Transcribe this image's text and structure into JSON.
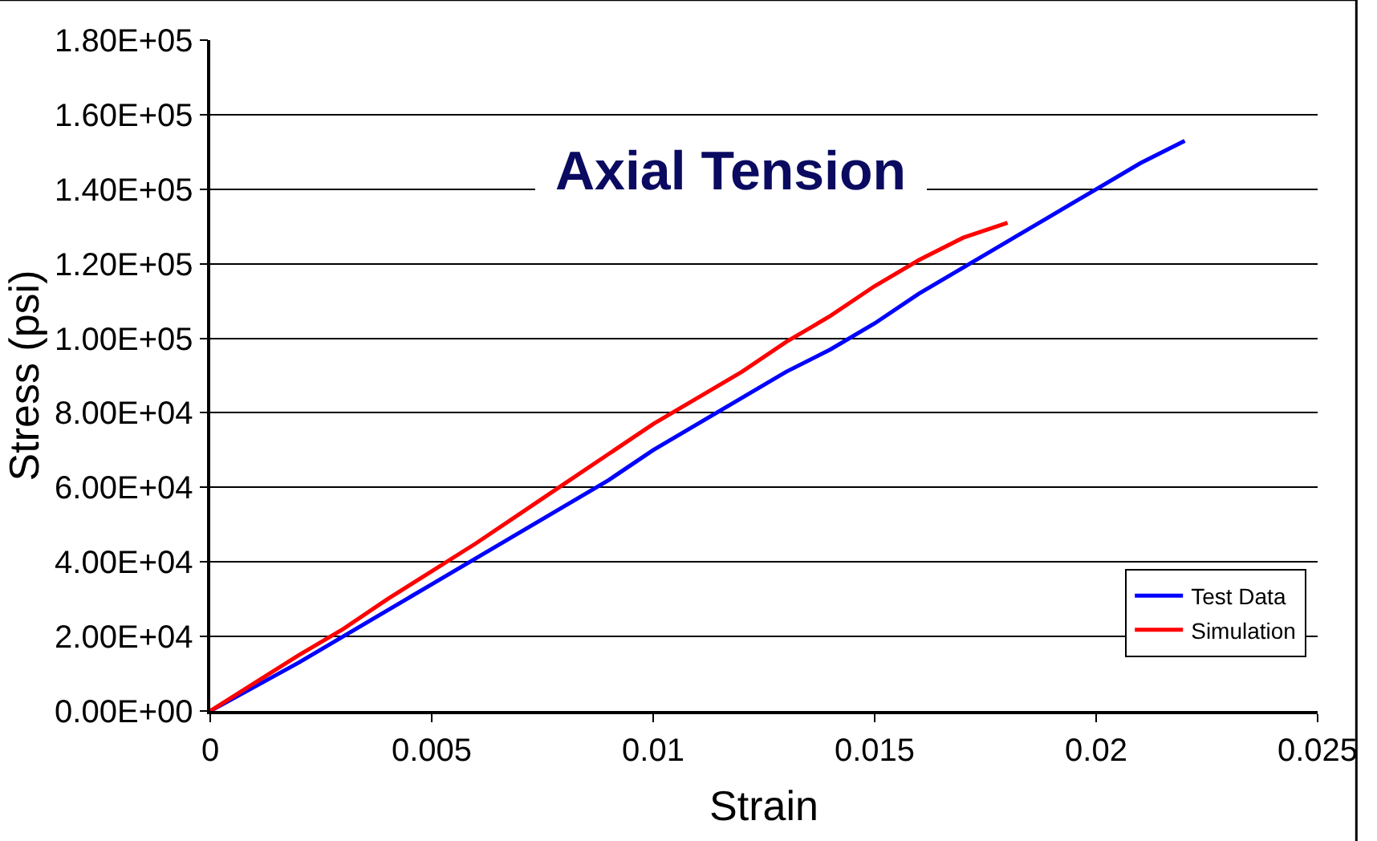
{
  "chart_data": {
    "type": "line",
    "title": "Axial Tension",
    "xlabel": "Strain",
    "ylabel": "Stress (psi)",
    "xlim": [
      0,
      0.025
    ],
    "xticks": [
      0,
      0.005,
      0.01,
      0.015,
      0.02,
      0.025
    ],
    "ylim": [
      0,
      180000
    ],
    "yticks": [
      {
        "value": 0,
        "label": "0.00E+00"
      },
      {
        "value": 20000,
        "label": "2.00E+04"
      },
      {
        "value": 40000,
        "label": "4.00E+04"
      },
      {
        "value": 60000,
        "label": "6.00E+04"
      },
      {
        "value": 80000,
        "label": "8.00E+04"
      },
      {
        "value": 100000,
        "label": "1.00E+05"
      },
      {
        "value": 120000,
        "label": "1.20E+05"
      },
      {
        "value": 140000,
        "label": "1.40E+05"
      },
      {
        "value": 160000,
        "label": "1.60E+05"
      },
      {
        "value": 180000,
        "label": "1.80E+05"
      }
    ],
    "grid": "y",
    "legend": "bottom right",
    "marker": "none",
    "line_style": "solid",
    "series": [
      {
        "name": "Test Data",
        "color": "#0000ff",
        "x": [
          0,
          0.001,
          0.002,
          0.003,
          0.004,
          0.005,
          0.006,
          0.007,
          0.008,
          0.009,
          0.01,
          0.011,
          0.012,
          0.013,
          0.014,
          0.015,
          0.016,
          0.017,
          0.018,
          0.019,
          0.02,
          0.021,
          0.022
        ],
        "values": [
          0,
          6500,
          13000,
          20000,
          27000,
          34000,
          41000,
          48000,
          55000,
          62000,
          70000,
          77000,
          84000,
          91000,
          97000,
          104000,
          112000,
          119000,
          126000,
          133000,
          140000,
          147000,
          153000
        ]
      },
      {
        "name": "Simulation",
        "color": "#ff0000",
        "x": [
          0,
          0.001,
          0.002,
          0.003,
          0.004,
          0.005,
          0.006,
          0.007,
          0.008,
          0.009,
          0.01,
          0.011,
          0.012,
          0.013,
          0.014,
          0.015,
          0.016,
          0.017,
          0.018
        ],
        "values": [
          0,
          7500,
          15000,
          22000,
          30000,
          37500,
          45000,
          53000,
          61000,
          69000,
          77000,
          84000,
          91000,
          99000,
          106000,
          114000,
          121000,
          127000,
          131000
        ]
      }
    ]
  }
}
